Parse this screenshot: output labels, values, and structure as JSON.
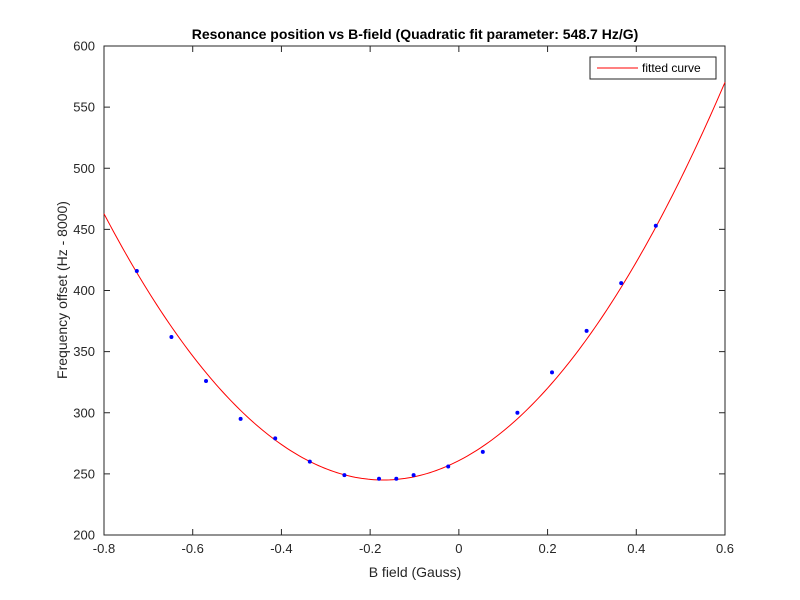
{
  "chart_data": {
    "type": "scatter",
    "title": "Resonance position vs B-field (Quadratic fit parameter: 548.7 Hz/G)",
    "xlabel": "B field (Gauss)",
    "ylabel": "Frequency offset (Hz - 8000)",
    "xlim": [
      -0.8,
      0.6
    ],
    "ylim": [
      200,
      600
    ],
    "xticks": [
      -0.8,
      -0.6,
      -0.4,
      -0.2,
      0,
      0.2,
      0.4,
      0.6
    ],
    "yticks": [
      200,
      250,
      300,
      350,
      400,
      450,
      500,
      550,
      600
    ],
    "grid": false,
    "legend_position": "top-right",
    "legend_entries": [
      "fitted curve"
    ],
    "series": [
      {
        "kind": "points",
        "color": "#0000ff",
        "x": [
          -0.726,
          -0.648,
          -0.57,
          -0.492,
          -0.414,
          -0.336,
          -0.258,
          -0.18,
          -0.141,
          -0.102,
          -0.024,
          0.054,
          0.132,
          0.21,
          0.288,
          0.366,
          0.444
        ],
        "y": [
          416,
          362,
          326,
          295,
          279,
          260,
          249,
          246,
          246,
          249,
          256,
          268,
          300,
          333,
          367,
          406,
          453
        ]
      },
      {
        "kind": "curve",
        "name": "fitted curve",
        "color": "#ff0000",
        "fit": "quadratic",
        "vertex_x": -0.17,
        "vertex_y": 245,
        "coefficient": 548.7,
        "x_range": [
          -0.8,
          0.6
        ]
      }
    ]
  }
}
